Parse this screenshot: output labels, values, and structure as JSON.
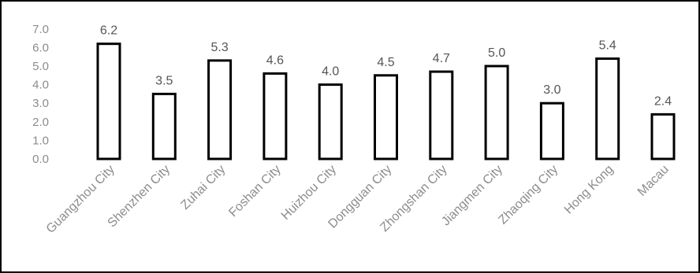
{
  "chart_data": {
    "type": "bar",
    "categories": [
      "Guangzhou City",
      "Shenzhen City",
      "Zuhai City",
      "Foshan City",
      "Huizhou City",
      "Dongguan City",
      "Zhongshan City",
      "Jiangmen City",
      "Zhaoqing City",
      "Hong Kong",
      "Macau"
    ],
    "values": [
      6.2,
      3.5,
      5.3,
      4.6,
      4.0,
      4.5,
      4.7,
      5.0,
      3.0,
      5.4,
      2.4
    ],
    "value_labels": [
      "6.2",
      "3.5",
      "5.3",
      "4.6",
      "4.0",
      "4.5",
      "4.7",
      "5.0",
      "3.0",
      "5.4",
      "2.4"
    ],
    "y_ticks": [
      "0.0",
      "1.0",
      "2.0",
      "3.0",
      "4.0",
      "5.0",
      "6.0",
      "7.0"
    ],
    "ylim": [
      0,
      7
    ],
    "title": "",
    "xlabel": "",
    "ylabel": "",
    "grid": false,
    "legend": "none",
    "colors": {
      "bar_fill": "#ffffff",
      "bar_stroke": "#000000",
      "text": "#8c8c8c",
      "value_text": "#555555",
      "frame": "#000000"
    }
  }
}
